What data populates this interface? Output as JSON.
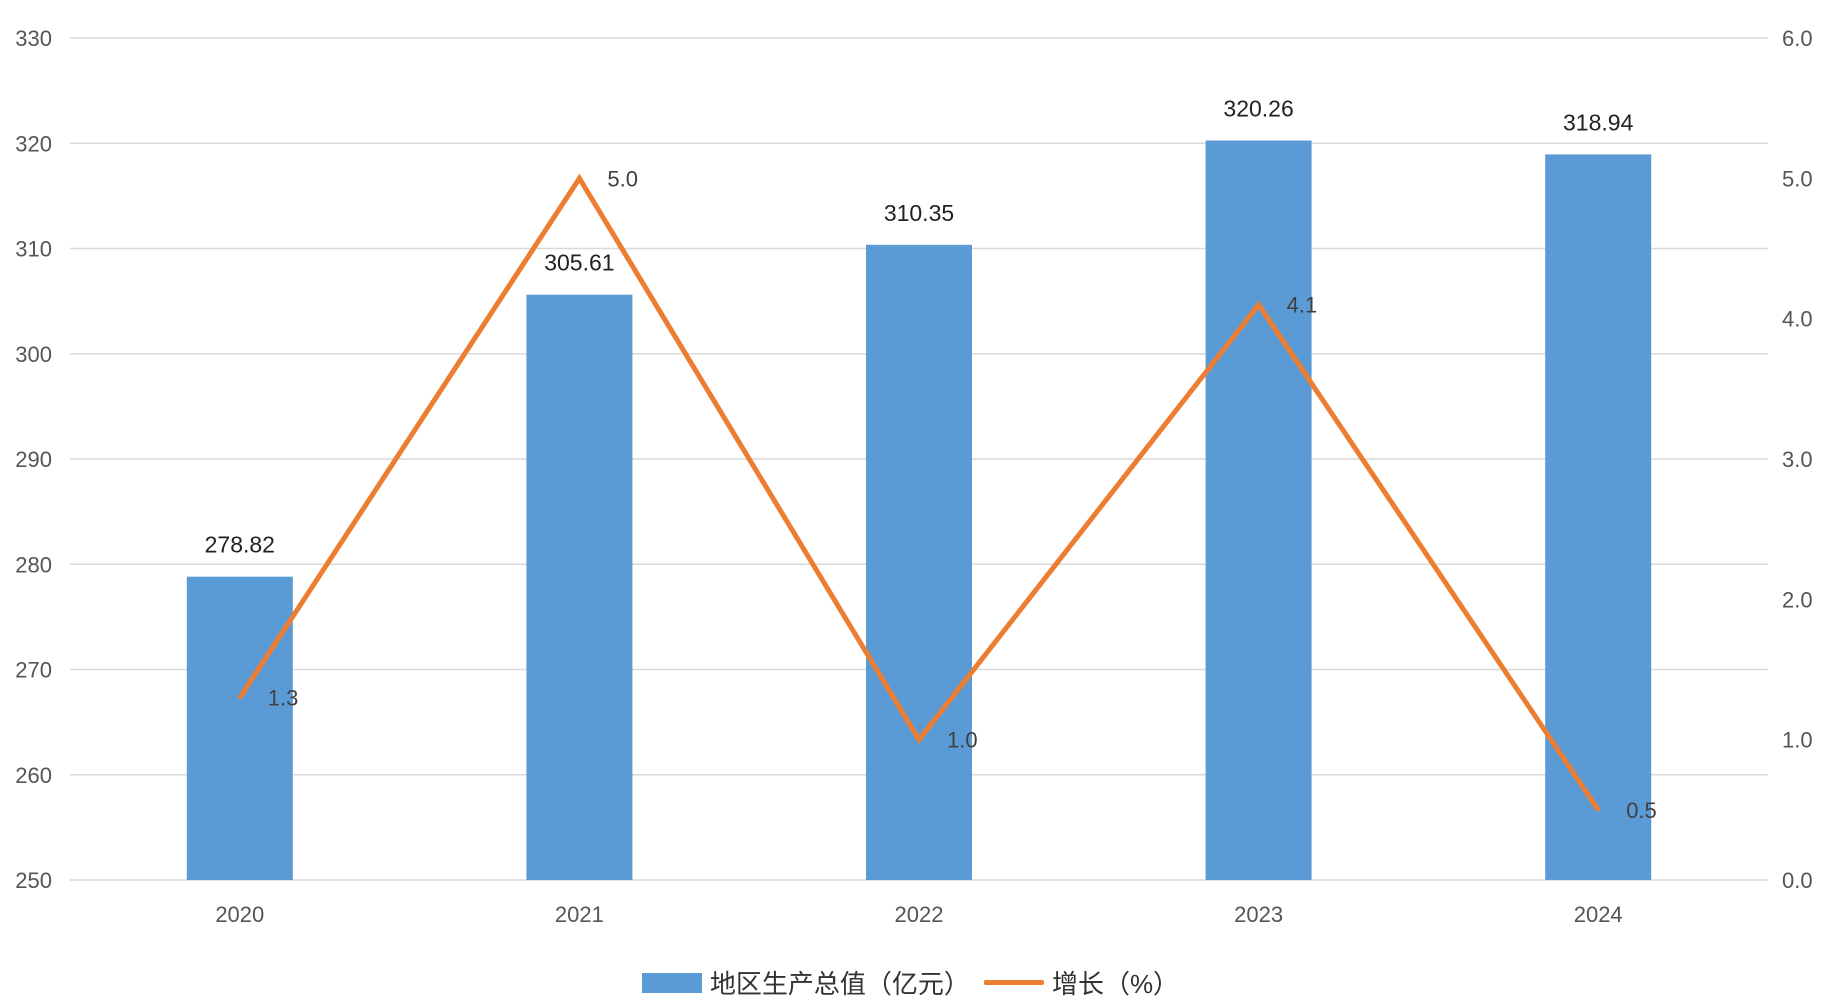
{
  "chart_data": {
    "type": "bar",
    "title": "",
    "categories": [
      "2020",
      "2021",
      "2022",
      "2023",
      "2024"
    ],
    "series": [
      {
        "name": "地区生产总值（亿元）",
        "type": "bar",
        "axis": "left",
        "values": [
          278.82,
          305.61,
          310.35,
          320.26,
          318.94
        ],
        "labels": [
          "278.82",
          "305.61",
          "310.35",
          "320.26",
          "318.94"
        ]
      },
      {
        "name": "增长（%）",
        "type": "line",
        "axis": "right",
        "values": [
          1.3,
          5.0,
          1.0,
          4.1,
          0.5
        ],
        "labels": [
          "1.3",
          "5.0",
          "1.0",
          "4.1",
          "0.5"
        ]
      }
    ],
    "y_left": {
      "min": 250,
      "max": 330,
      "ticks": [
        "250",
        "260",
        "270",
        "280",
        "290",
        "300",
        "310",
        "320",
        "330"
      ]
    },
    "y_right": {
      "min": 0,
      "max": 6,
      "ticks": [
        "0.0",
        "1.0",
        "2.0",
        "3.0",
        "4.0",
        "5.0",
        "6.0"
      ]
    },
    "grid": true,
    "legend_position": "bottom",
    "colors": {
      "bar": "#5b9bd5",
      "line": "#ed7d31",
      "grid": "#d9d9d9"
    }
  }
}
